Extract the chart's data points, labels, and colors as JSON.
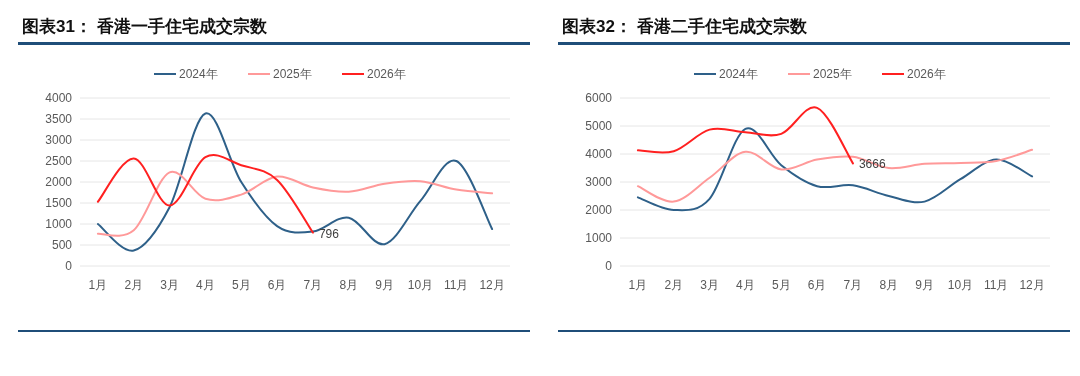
{
  "chart_data": [
    {
      "type": "line",
      "title": "图表31：  香港一手住宅成交宗数",
      "categories": [
        "1月",
        "2月",
        "3月",
        "4月",
        "5月",
        "6月",
        "7月",
        "8月",
        "9月",
        "10月",
        "11月",
        "12月"
      ],
      "ylim": [
        0,
        4000
      ],
      "yticks": [
        0,
        500,
        1000,
        1500,
        2000,
        2500,
        3000,
        3500,
        4000
      ],
      "grid": "y",
      "legend": "top",
      "series": [
        {
          "name": "2024年",
          "color": "#2e6089",
          "values": [
            1000,
            370,
            1400,
            3630,
            2000,
            950,
            820,
            1150,
            520,
            1550,
            2500,
            880
          ]
        },
        {
          "name": "2025年",
          "color": "#ff9999",
          "values": [
            770,
            850,
            2230,
            1600,
            1700,
            2130,
            1870,
            1770,
            1960,
            2020,
            1820,
            1730
          ]
        },
        {
          "name": "2026年",
          "color": "#ff2020",
          "values": [
            1530,
            2560,
            1440,
            2590,
            2400,
            2050,
            796,
            null,
            null,
            null,
            null,
            null
          ],
          "value_labels": [
            null,
            null,
            null,
            null,
            null,
            null,
            "796",
            null,
            null,
            null,
            null,
            null
          ]
        }
      ]
    },
    {
      "type": "line",
      "title": "图表32：  香港二手住宅成交宗数",
      "categories": [
        "1月",
        "2月",
        "3月",
        "4月",
        "5月",
        "6月",
        "7月",
        "8月",
        "9月",
        "10月",
        "11月",
        "12月"
      ],
      "ylim": [
        0,
        6000
      ],
      "yticks": [
        0,
        1000,
        2000,
        3000,
        4000,
        5000,
        6000
      ],
      "grid": "y",
      "legend": "top",
      "series": [
        {
          "name": "2024年",
          "color": "#2e6089",
          "values": [
            2450,
            2000,
            2400,
            4900,
            3600,
            2850,
            2880,
            2500,
            2300,
            3100,
            3800,
            3200
          ]
        },
        {
          "name": "2025年",
          "color": "#ff9999",
          "values": [
            2850,
            2300,
            3150,
            4080,
            3450,
            3800,
            3900,
            3500,
            3650,
            3680,
            3750,
            4150
          ]
        },
        {
          "name": "2026年",
          "color": "#ff2020",
          "values": [
            4130,
            4100,
            4870,
            4780,
            4720,
            5650,
            3666,
            null,
            null,
            null,
            null,
            null
          ],
          "value_labels": [
            null,
            null,
            null,
            null,
            null,
            null,
            "3666",
            null,
            null,
            null,
            null,
            null
          ]
        }
      ]
    }
  ]
}
